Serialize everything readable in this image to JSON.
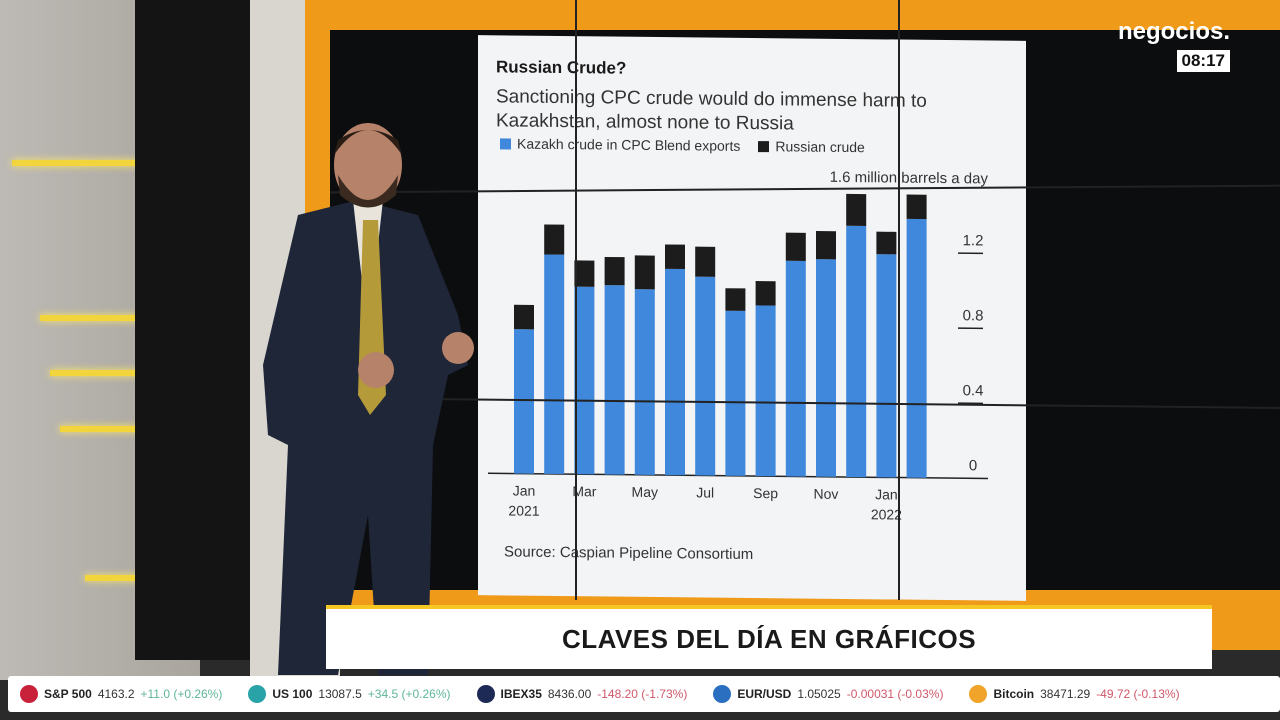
{
  "logo": {
    "brand": "negocios.",
    "time": "08:17"
  },
  "banner": {
    "title": "CLAVES DEL DÍA EN GRÁFICOS"
  },
  "ticker": [
    {
      "name": "S&P 500",
      "value": "4163.2",
      "change": "+11.0 (+0.26%)",
      "direction": "up",
      "icon_color": "#c8223b"
    },
    {
      "name": "US 100",
      "value": "13087.5",
      "change": "+34.5 (+0.26%)",
      "direction": "up",
      "icon_color": "#2aa3a8"
    },
    {
      "name": "IBEX35",
      "value": "8436.00",
      "change": "-148.20 (-1.73%)",
      "direction": "down",
      "icon_color": "#1c2a55"
    },
    {
      "name": "EUR/USD",
      "value": "1.05025",
      "change": "-0.00031 (-0.03%)",
      "direction": "down",
      "icon_color": "#2a6fc0"
    },
    {
      "name": "Bitcoin",
      "value": "38471.29",
      "change": "-49.72 (-0.13%)",
      "direction": "down",
      "icon_color": "#f0a429"
    }
  ],
  "chart_data": {
    "type": "bar",
    "stacked": true,
    "title": "Russian Crude?",
    "subtitle": "Sanctioning CPC crude would do immense harm to Kazakhstan, almost none to Russia",
    "unit_label": "1.6 million barrels a day",
    "source": "Source: Caspian Pipeline Consortium",
    "legend_position": "top-left",
    "categories": [
      "Jan 2021",
      "Feb 2021",
      "Mar 2021",
      "Apr 2021",
      "May 2021",
      "Jun 2021",
      "Jul 2021",
      "Aug 2021",
      "Sep 2021",
      "Oct 2021",
      "Nov 2021",
      "Dec 2021",
      "Jan 2022",
      "Feb 2022"
    ],
    "x_tick_labels": [
      {
        "index": 0,
        "label": "Jan",
        "sub": "2021"
      },
      {
        "index": 2,
        "label": "Mar"
      },
      {
        "index": 4,
        "label": "May"
      },
      {
        "index": 6,
        "label": "Jul"
      },
      {
        "index": 8,
        "label": "Sep"
      },
      {
        "index": 10,
        "label": "Nov"
      },
      {
        "index": 12,
        "label": "Jan",
        "sub": "2022"
      }
    ],
    "y_ticks": [
      "0",
      "0.4",
      "0.8",
      "1.2"
    ],
    "ylim": [
      0,
      1.6
    ],
    "series": [
      {
        "name": "Kazakh crude in CPC Blend exports",
        "color": "#3f88db",
        "values": [
          0.77,
          1.17,
          1.0,
          1.01,
          0.99,
          1.1,
          1.06,
          0.88,
          0.91,
          1.15,
          1.16,
          1.34,
          1.19,
          1.38
        ]
      },
      {
        "name": "Russian crude",
        "color": "#1c1c1c",
        "values": [
          0.13,
          0.16,
          0.14,
          0.15,
          0.18,
          0.13,
          0.16,
          0.12,
          0.13,
          0.15,
          0.15,
          0.17,
          0.12,
          0.13
        ]
      }
    ]
  }
}
